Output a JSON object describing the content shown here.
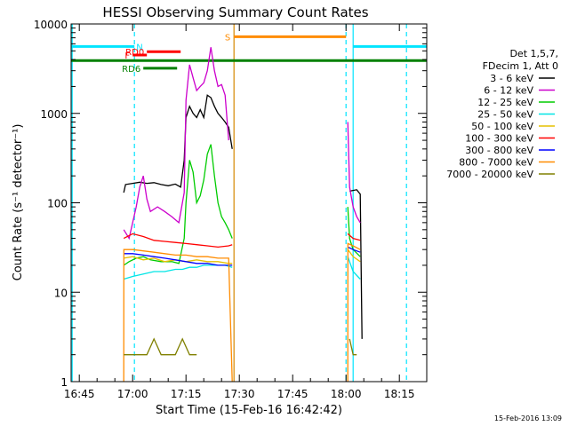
{
  "chart_data": {
    "type": "line",
    "title": "HESSI Observing Summary Count Rates",
    "xlabel": "Start Time (15-Feb-16 16:42:42)",
    "ylabel": "Count Rate (s⁻¹ detector⁻¹)",
    "y_scale": "log",
    "xlim": [
      "16:42:42",
      "18:22:42"
    ],
    "ylim": [
      1,
      10000
    ],
    "x_ticks": [
      "16:45",
      "17:00",
      "17:15",
      "17:30",
      "17:45",
      "18:00",
      "18:15"
    ],
    "y_ticks": [
      "1",
      "10",
      "100",
      "1000",
      "10000"
    ],
    "grid": false,
    "legend_position": "right",
    "legend_header": [
      "Det 1,5,7,",
      "FDecim 1, Att 0"
    ],
    "timestamp": "15-Feb-2016 13:09",
    "colors": {
      "3 - 6 keV": "#000000",
      "6 - 12 keV": "#cc00cc",
      "12 - 25 keV": "#00cc00",
      "25 - 50 keV": "#00e5e5",
      "50 - 100 keV": "#e5c000",
      "100 - 300 keV": "#ff0000",
      "300 - 800 keV": "#0000ff",
      "800 - 7000 keV": "#ff8c00",
      "7000 - 20000 keV": "#808000",
      "flag_N": "#00e5ff",
      "flag_S": "#ff8c00",
      "flag_F": "#ff0000",
      "flag_RD0": "#ff0000",
      "flag_RD6": "#008000",
      "flag_main": "#008000"
    },
    "series": [
      {
        "name": "3 - 6 keV",
        "segments": [
          [
            [
              "16:57:30",
              130
            ],
            [
              "16:58",
              160
            ],
            [
              "17:00",
              165
            ],
            [
              "17:02",
              170
            ],
            [
              "17:04",
              165
            ],
            [
              "17:06",
              168
            ],
            [
              "17:08",
              160
            ],
            [
              "17:10",
              155
            ],
            [
              "17:12",
              162
            ],
            [
              "17:13:30",
              150
            ],
            [
              "17:14:30",
              300
            ],
            [
              "17:15",
              900
            ],
            [
              "17:16",
              1200
            ],
            [
              "17:17",
              1000
            ],
            [
              "17:18",
              900
            ],
            [
              "17:19",
              1100
            ],
            [
              "17:20",
              900
            ],
            [
              "17:21",
              1600
            ],
            [
              "17:22",
              1500
            ],
            [
              "17:23",
              1200
            ],
            [
              "17:24",
              1000
            ],
            [
              "17:25",
              900
            ],
            [
              "17:26",
              800
            ],
            [
              "17:27",
              700
            ],
            [
              "17:28",
              400
            ]
          ],
          [
            [
              "18:01",
              135
            ],
            [
              "18:03",
              140
            ],
            [
              "18:04",
              125
            ],
            [
              "18:04:30",
              3
            ]
          ]
        ]
      },
      {
        "name": "6 - 12 keV",
        "segments": [
          [
            [
              "16:57:30",
              50
            ],
            [
              "16:59",
              40
            ],
            [
              "17:01",
              90
            ],
            [
              "17:02",
              150
            ],
            [
              "17:03",
              200
            ],
            [
              "17:04",
              110
            ],
            [
              "17:05",
              80
            ],
            [
              "17:07",
              90
            ],
            [
              "17:09",
              80
            ],
            [
              "17:11",
              70
            ],
            [
              "17:13",
              60
            ],
            [
              "17:14:30",
              130
            ],
            [
              "17:15",
              1400
            ],
            [
              "17:16",
              3500
            ],
            [
              "17:17",
              2500
            ],
            [
              "17:18",
              1800
            ],
            [
              "17:19",
              2000
            ],
            [
              "17:20",
              2200
            ],
            [
              "17:21",
              3000
            ],
            [
              "17:22",
              5500
            ],
            [
              "17:23",
              3000
            ],
            [
              "17:24",
              2000
            ],
            [
              "17:25",
              2100
            ],
            [
              "17:26",
              1600
            ],
            [
              "17:27",
              500
            ]
          ],
          [
            [
              "18:00:30",
              800
            ],
            [
              "18:01",
              150
            ],
            [
              "18:02",
              90
            ],
            [
              "18:03",
              70
            ],
            [
              "18:04",
              60
            ]
          ]
        ]
      },
      {
        "name": "12 - 25 keV",
        "segments": [
          [
            [
              "16:57:30",
              20
            ],
            [
              "16:59",
              22
            ],
            [
              "17:01",
              24
            ],
            [
              "17:03",
              25
            ],
            [
              "17:05",
              23
            ],
            [
              "17:08",
              22
            ],
            [
              "17:11",
              22
            ],
            [
              "17:13",
              21
            ],
            [
              "17:14:30",
              40
            ],
            [
              "17:15",
              100
            ],
            [
              "17:16",
              300
            ],
            [
              "17:17",
              220
            ],
            [
              "17:18",
              100
            ],
            [
              "17:19",
              120
            ],
            [
              "17:20",
              180
            ],
            [
              "17:21",
              350
            ],
            [
              "17:22",
              450
            ],
            [
              "17:23",
              200
            ],
            [
              "17:24",
              100
            ],
            [
              "17:25",
              70
            ],
            [
              "17:26",
              60
            ],
            [
              "17:27",
              50
            ],
            [
              "17:28",
              40
            ]
          ],
          [
            [
              "18:00:30",
              90
            ],
            [
              "18:01",
              40
            ],
            [
              "18:02",
              30
            ],
            [
              "18:04",
              25
            ]
          ]
        ]
      },
      {
        "name": "25 - 50 keV",
        "segments": [
          [
            [
              "16:57:30",
              14
            ],
            [
              "17:00",
              15
            ],
            [
              "17:03",
              16
            ],
            [
              "17:06",
              17
            ],
            [
              "17:09",
              17
            ],
            [
              "17:12",
              18
            ],
            [
              "17:14",
              18
            ],
            [
              "17:16",
              19
            ],
            [
              "17:18",
              19
            ],
            [
              "17:20",
              20
            ],
            [
              "17:22",
              20
            ],
            [
              "17:24",
              20
            ],
            [
              "17:26",
              20
            ],
            [
              "17:28",
              19
            ]
          ],
          [
            [
              "18:00:30",
              25
            ],
            [
              "18:02",
              17
            ],
            [
              "18:04",
              14
            ]
          ]
        ]
      },
      {
        "name": "50 - 100 keV",
        "segments": [
          [
            [
              "16:57:30",
              24
            ],
            [
              "17:00",
              25
            ],
            [
              "17:03",
              23
            ],
            [
              "17:06",
              24
            ],
            [
              "17:09",
              22
            ],
            [
              "17:12",
              23
            ],
            [
              "17:15",
              22
            ],
            [
              "17:18",
              23
            ],
            [
              "17:21",
              22
            ],
            [
              "17:24",
              22
            ],
            [
              "17:27",
              21
            ],
            [
              "17:28",
              21
            ]
          ],
          [
            [
              "18:00:30",
              30
            ],
            [
              "18:02",
              25
            ],
            [
              "18:04",
              22
            ]
          ]
        ]
      },
      {
        "name": "100 - 300 keV",
        "segments": [
          [
            [
              "16:57:30",
              40
            ],
            [
              "17:00",
              45
            ],
            [
              "17:03",
              42
            ],
            [
              "17:06",
              38
            ],
            [
              "17:09",
              37
            ],
            [
              "17:12",
              36
            ],
            [
              "17:15",
              35
            ],
            [
              "17:18",
              34
            ],
            [
              "17:21",
              33
            ],
            [
              "17:24",
              32
            ],
            [
              "17:27",
              33
            ],
            [
              "17:28",
              34
            ]
          ],
          [
            [
              "18:00:30",
              45
            ],
            [
              "18:02",
              40
            ],
            [
              "18:04",
              38
            ]
          ]
        ]
      },
      {
        "name": "300 - 800 keV",
        "segments": [
          [
            [
              "16:57:30",
              27
            ],
            [
              "17:00",
              27
            ],
            [
              "17:03",
              26
            ],
            [
              "17:06",
              25
            ],
            [
              "17:09",
              24
            ],
            [
              "17:12",
              23
            ],
            [
              "17:15",
              22
            ],
            [
              "17:18",
              21
            ],
            [
              "17:21",
              21
            ],
            [
              "17:24",
              20
            ],
            [
              "17:27",
              20
            ],
            [
              "17:28",
              20
            ]
          ],
          [
            [
              "18:00:30",
              32
            ],
            [
              "18:02",
              30
            ],
            [
              "18:04",
              28
            ]
          ]
        ]
      },
      {
        "name": "800 - 7000 keV",
        "segments": [
          [
            [
              "16:57:30",
              1
            ],
            [
              "16:57:31",
              30
            ],
            [
              "17:00",
              30
            ],
            [
              "17:03",
              29
            ],
            [
              "17:06",
              28
            ],
            [
              "17:09",
              27
            ],
            [
              "17:12",
              26
            ],
            [
              "17:15",
              26
            ],
            [
              "17:18",
              25
            ],
            [
              "17:21",
              25
            ],
            [
              "17:24",
              24
            ],
            [
              "17:27",
              24
            ],
            [
              "17:28",
              1
            ]
          ],
          [
            [
              "18:00:30",
              1
            ],
            [
              "18:00:31",
              35
            ],
            [
              "18:02",
              33
            ],
            [
              "18:04",
              30
            ]
          ]
        ]
      },
      {
        "name": "7000 - 20000 keV",
        "segments": [
          [
            [
              "16:57:30",
              2
            ],
            [
              "16:58",
              2
            ],
            [
              "17:00",
              2
            ],
            [
              "17:02",
              2
            ],
            [
              "17:04",
              2
            ],
            [
              "17:06",
              3
            ],
            [
              "17:08",
              2
            ],
            [
              "17:10",
              2
            ],
            [
              "17:12",
              2
            ],
            [
              "17:14",
              3
            ],
            [
              "17:16",
              2
            ],
            [
              "17:18",
              2
            ]
          ],
          [
            [
              "18:01",
              3
            ],
            [
              "18:02",
              2
            ],
            [
              "18:03",
              2
            ]
          ]
        ]
      }
    ],
    "annotations": [
      {
        "label": "N",
        "from": "16:42:42",
        "to": "17:00:30",
        "level": 5600,
        "color": "flag_N"
      },
      {
        "label": "",
        "from": "18:02",
        "to": "18:22:42",
        "level": 5600,
        "color": "flag_N"
      },
      {
        "label": "S",
        "from": "17:28:30",
        "to": "18:00",
        "level": 7200,
        "color": "flag_S"
      },
      {
        "label": "F",
        "from": "17:00",
        "to": "17:04",
        "level": 4500,
        "color": "flag_F"
      },
      {
        "label": "RD0",
        "from": "17:04",
        "to": "17:13:30",
        "level": 4900,
        "color": "flag_RD0"
      },
      {
        "label": "RD6",
        "from": "17:03",
        "to": "17:12:30",
        "level": 3200,
        "color": "flag_RD6"
      },
      {
        "label": "",
        "from": "16:42:42",
        "to": "18:22:42",
        "level": 3900,
        "color": "flag_main"
      }
    ],
    "vlines": [
      {
        "at": "16:43",
        "color": "flag_N",
        "style": "solid"
      },
      {
        "at": "17:00:30",
        "color": "flag_N",
        "style": "dashed"
      },
      {
        "at": "17:28:30",
        "color": "flag_N",
        "style": "solid"
      },
      {
        "at": "17:28:30",
        "color": "flag_S",
        "style": "solid"
      },
      {
        "at": "18:00",
        "color": "flag_N",
        "style": "dashed"
      },
      {
        "at": "18:02",
        "color": "flag_N",
        "style": "solid"
      },
      {
        "at": "18:17",
        "color": "flag_N",
        "style": "dashed"
      }
    ]
  }
}
